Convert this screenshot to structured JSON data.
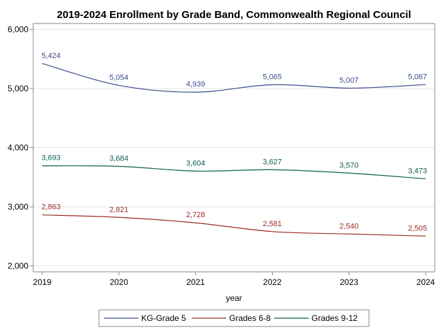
{
  "chart_data": {
    "type": "line",
    "title": "2019-2024 Enrollment by Grade Band, Commonwealth Regional Council",
    "xlabel": "year",
    "ylabel": "",
    "x": [
      2019,
      2020,
      2021,
      2022,
      2023,
      2024
    ],
    "x_tick_labels": [
      "2019",
      "2020",
      "2021",
      "2022",
      "2023",
      "2024"
    ],
    "ylim": [
      1900,
      6100
    ],
    "y_ticks": [
      2000,
      3000,
      4000,
      5000,
      6000
    ],
    "y_tick_labels": [
      "2,000",
      "3,000",
      "4,000",
      "5,000",
      "6,000"
    ],
    "grid": true,
    "legend_position": "bottom",
    "series": [
      {
        "name": "KG-Grade 5",
        "color": "#3b4c8c",
        "values": [
          5424,
          5054,
          4939,
          5065,
          5007,
          5067
        ],
        "labels": [
          "5,424",
          "5,054",
          "4,939",
          "5,065",
          "5,007",
          "5,067"
        ]
      },
      {
        "name": "Grades 6-8",
        "color": "#9b2a22",
        "values": [
          2863,
          2821,
          2728,
          2581,
          2540,
          2505
        ],
        "labels": [
          "2,863",
          "2,821",
          "2,728",
          "2,581",
          "2,540",
          "2,505"
        ]
      },
      {
        "name": "Grades 9-12",
        "color": "#0d5e52",
        "values": [
          3693,
          3684,
          3604,
          3627,
          3570,
          3473
        ],
        "labels": [
          "3,693",
          "3,684",
          "3,604",
          "3,627",
          "3,570",
          "3,473"
        ]
      }
    ]
  }
}
